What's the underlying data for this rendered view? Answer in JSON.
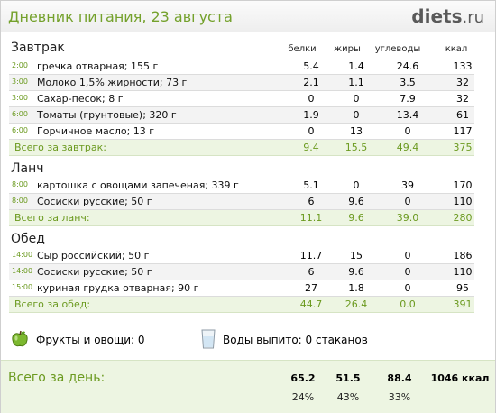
{
  "header": {
    "title": "Дневник питания, 23 августа",
    "logo_main": "diets",
    "logo_tld": ".ru"
  },
  "columns": {
    "protein": "белки",
    "fat": "жиры",
    "carbs": "углеводы",
    "kcal": "ккал"
  },
  "breakfast": {
    "title": "Завтрак",
    "items": [
      {
        "time": "2:00",
        "food": "гречка отварная; 155 г",
        "protein": "5.4",
        "fat": "1.4",
        "carbs": "24.6",
        "kcal": "133"
      },
      {
        "time": "3:00",
        "food": "Молоко 1,5% жирности; 73 г",
        "protein": "2.1",
        "fat": "1.1",
        "carbs": "3.5",
        "kcal": "32"
      },
      {
        "time": "3:00",
        "food": "Сахар-песок; 8 г",
        "protein": "0",
        "fat": "0",
        "carbs": "7.9",
        "kcal": "32"
      },
      {
        "time": "6:00",
        "food": "Томаты (грунтовые); 320 г",
        "protein": "1.9",
        "fat": "0",
        "carbs": "13.4",
        "kcal": "61"
      },
      {
        "time": "6:00",
        "food": "Горчичное масло; 13 г",
        "protein": "0",
        "fat": "13",
        "carbs": "0",
        "kcal": "117"
      }
    ],
    "total": {
      "label": "Всего за завтрак:",
      "protein": "9.4",
      "fat": "15.5",
      "carbs": "49.4",
      "kcal": "375"
    }
  },
  "lunch": {
    "title": "Ланч",
    "items": [
      {
        "time": "8:00",
        "food": "картошка с овощами запеченая; 339 г",
        "protein": "5.1",
        "fat": "0",
        "carbs": "39",
        "kcal": "170"
      },
      {
        "time": "8:00",
        "food": "Сосиски русские; 50 г",
        "protein": "6",
        "fat": "9.6",
        "carbs": "0",
        "kcal": "110"
      }
    ],
    "total": {
      "label": "Всего за ланч:",
      "protein": "11.1",
      "fat": "9.6",
      "carbs": "39.0",
      "kcal": "280"
    }
  },
  "dinner": {
    "title": "Обед",
    "items": [
      {
        "time": "14:00",
        "food": "Сыр российский; 50 г",
        "protein": "11.7",
        "fat": "15",
        "carbs": "0",
        "kcal": "186"
      },
      {
        "time": "14:00",
        "food": "Сосиски русские; 50 г",
        "protein": "6",
        "fat": "9.6",
        "carbs": "0",
        "kcal": "110"
      },
      {
        "time": "15:00",
        "food": "куриная грудка отварная; 90 г",
        "protein": "27",
        "fat": "1.8",
        "carbs": "0",
        "kcal": "95"
      }
    ],
    "total": {
      "label": "Всего за обед:",
      "protein": "44.7",
      "fat": "26.4",
      "carbs": "0.0",
      "kcal": "391"
    }
  },
  "extras": {
    "fruit_label": "Фрукты и овощи: 0",
    "water_label": "Воды выпито: 0 стаканов",
    "fruit_icon": "apple-icon",
    "water_icon": "water-glass-icon"
  },
  "day_total": {
    "label": "Всего за день:",
    "protein": "65.2",
    "fat": "51.5",
    "carbs": "88.4",
    "kcal": "1046 ккал",
    "protein_pct": "24%",
    "fat_pct": "43%",
    "carbs_pct": "33%"
  },
  "colors": {
    "accent_green": "#6b9a1f",
    "total_bg": "#edf5e2"
  }
}
